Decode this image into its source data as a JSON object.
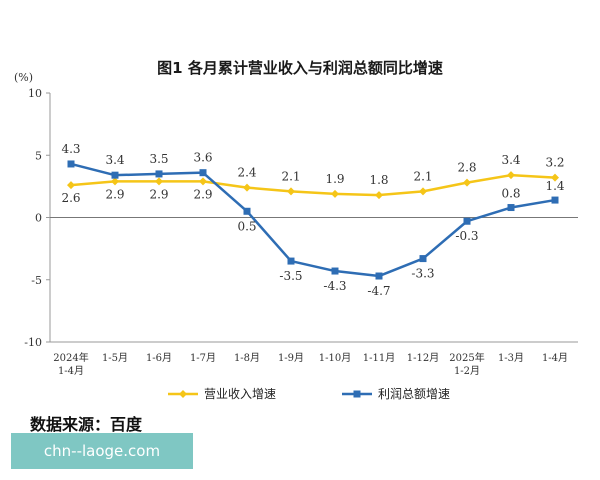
{
  "chart_data": {
    "type": "line",
    "title": "图1  各月累计营业收入与利润总额同比增速",
    "y_unit": "(%)",
    "ylim": [
      -10,
      10
    ],
    "yticks": [
      "10",
      "5",
      "0",
      "-5",
      "-10"
    ],
    "ytick_values": [
      10,
      5,
      0,
      -5,
      -10
    ],
    "categories": [
      [
        "2024年",
        "1-4月"
      ],
      [
        "1-5月"
      ],
      [
        "1-6月"
      ],
      [
        "1-7月"
      ],
      [
        "1-8月"
      ],
      [
        "1-9月"
      ],
      [
        "1-10月"
      ],
      [
        "1-11月"
      ],
      [
        "1-12月"
      ],
      [
        "2025年",
        "1-2月"
      ],
      [
        "1-3月"
      ],
      [
        "1-4月"
      ]
    ],
    "series": [
      {
        "name": "营业收入增速",
        "color": "#f5c518",
        "marker": "diamond",
        "values": [
          2.6,
          2.9,
          2.9,
          2.9,
          2.4,
          2.1,
          1.9,
          1.8,
          2.1,
          2.8,
          3.4,
          3.2
        ],
        "labels": [
          "2.6",
          "2.9",
          "2.9",
          "2.9",
          "2.4",
          "2.1",
          "1.9",
          "1.8",
          "2.1",
          "2.8",
          "3.4",
          "3.2"
        ]
      },
      {
        "name": "利润总额增速",
        "color": "#2e6db4",
        "marker": "square",
        "values": [
          4.3,
          3.4,
          3.5,
          3.6,
          0.5,
          -3.5,
          -4.3,
          -4.7,
          -3.3,
          -0.3,
          0.8,
          1.4
        ],
        "labels": [
          "4.3",
          "3.4",
          "3.5",
          "3.6",
          "0.5",
          "-3.5",
          "-4.3",
          "-4.7",
          "-3.3",
          "-0.3",
          "0.8",
          "1.4"
        ]
      }
    ],
    "legend_position": "bottom",
    "grid": false
  },
  "source_note": "数据来源：百度",
  "watermark": "chn--laoge.com"
}
